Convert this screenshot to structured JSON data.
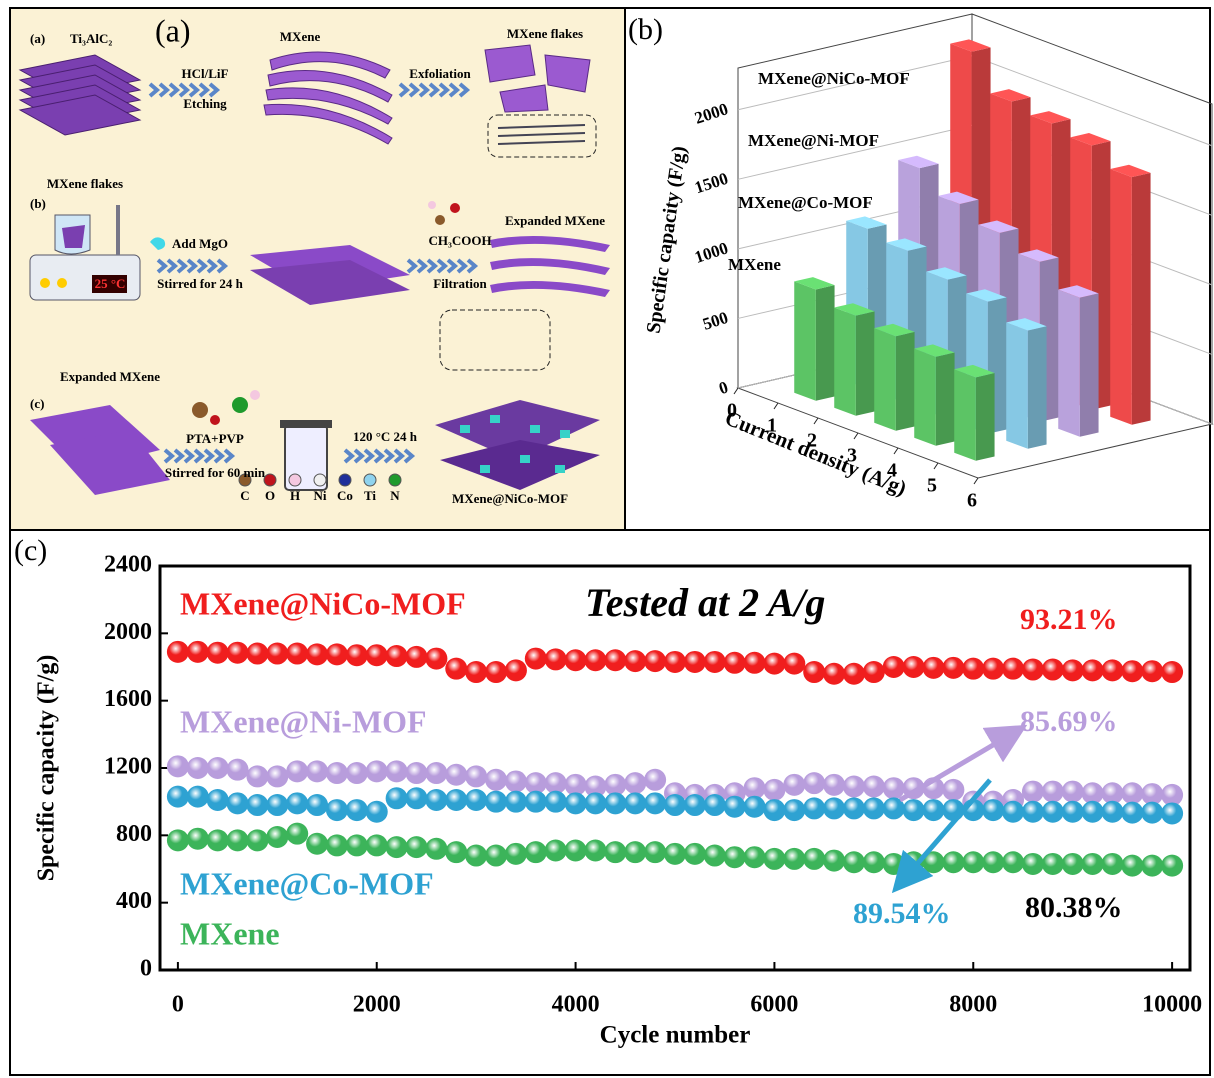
{
  "schematic": {
    "label": "(a)",
    "rows": {
      "a": {
        "label": "(a)",
        "start": "Ti₃AlC₂",
        "etch_top": "HCl/LiF",
        "etch_bottom": "Etching",
        "mid": "MXene",
        "step2": "Exfoliation",
        "end": "MXene flakes"
      },
      "b": {
        "label": "(b)",
        "start": "MXene flakes",
        "temp": "25 °C",
        "add_top": "Add MgO",
        "add_bottom": "Stirred for 24 h",
        "acid_top": "CH₃COOH",
        "acid_bottom": "Filtration",
        "end": "Expanded MXene"
      },
      "c": {
        "label": "(c)",
        "start": "Expanded MXene",
        "mix_top": "PTA+PVP",
        "mix_bottom": "Stirred for 60 min",
        "heat": "120 °C 24 h",
        "end": "MXene@NiCo-MOF"
      }
    },
    "atoms": [
      {
        "symbol": "C",
        "color": "#8a5a2b"
      },
      {
        "symbol": "O",
        "color": "#c0141c"
      },
      {
        "symbol": "H",
        "color": "#f4c8e0"
      },
      {
        "symbol": "Ni",
        "color": "#f0f0f0"
      },
      {
        "symbol": "Co",
        "color": "#1f2f9a"
      },
      {
        "symbol": "Ti",
        "color": "#8fd3ee"
      },
      {
        "symbol": "N",
        "color": "#1f9a2c"
      }
    ]
  },
  "chart_data": [
    {
      "type": "bar3d",
      "label": "(b)",
      "x_label": "Current density (A/g)",
      "z_label": "Specific capacity (F/g)",
      "x": [
        1,
        2,
        3,
        4,
        5
      ],
      "xlim": [
        0,
        6
      ],
      "xticks": [
        0,
        1,
        2,
        3,
        4,
        5,
        6
      ],
      "zlim": [
        0,
        2300
      ],
      "zticks": [
        0,
        500,
        1000,
        1500,
        2000
      ],
      "series": [
        {
          "name": "MXene@NiCo-MOF",
          "color": "#ee4a4a",
          "values": [
            2250,
            2000,
            1950,
            1900,
            1780
          ]
        },
        {
          "name": "MXene@Ni-MOF",
          "color": "#b9a2dc",
          "values": [
            1500,
            1350,
            1250,
            1150,
            1000
          ]
        },
        {
          "name": "MXene@Co-MOF",
          "color": "#86c8e4",
          "values": [
            1150,
            1100,
            1000,
            950,
            850
          ]
        },
        {
          "name": "MXene",
          "color": "#5cc465",
          "values": [
            800,
            720,
            680,
            640,
            600
          ]
        }
      ]
    },
    {
      "type": "scatter",
      "label": "(c)",
      "x_label": "Cycle number",
      "y_label": "Specific capacity (F/g)",
      "xlim": [
        -180,
        10180
      ],
      "ylim": [
        0,
        2400
      ],
      "xticks": [
        0,
        2000,
        4000,
        6000,
        8000,
        10000
      ],
      "yticks": [
        0,
        400,
        800,
        1200,
        1600,
        2000,
        2400
      ],
      "x": [
        0,
        200,
        400,
        600,
        800,
        1000,
        1200,
        1400,
        1600,
        1800,
        2000,
        2200,
        2400,
        2600,
        2800,
        3000,
        3200,
        3400,
        3600,
        3800,
        4000,
        4200,
        4400,
        4600,
        4800,
        5000,
        5200,
        5400,
        5600,
        5800,
        6000,
        6200,
        6400,
        6600,
        6800,
        7000,
        7200,
        7400,
        7600,
        7800,
        8000,
        8200,
        8400,
        8600,
        8800,
        9000,
        9200,
        9400,
        9600,
        9800,
        10000
      ],
      "series": [
        {
          "name": "MXene@NiCo-MOF",
          "color": "#f01e1e",
          "values": [
            1890,
            1890,
            1885,
            1885,
            1880,
            1880,
            1880,
            1875,
            1875,
            1870,
            1870,
            1865,
            1860,
            1850,
            1790,
            1770,
            1770,
            1780,
            1850,
            1845,
            1840,
            1840,
            1840,
            1835,
            1835,
            1830,
            1830,
            1830,
            1825,
            1825,
            1820,
            1820,
            1770,
            1760,
            1760,
            1770,
            1800,
            1800,
            1795,
            1795,
            1790,
            1790,
            1790,
            1785,
            1785,
            1780,
            1780,
            1780,
            1775,
            1775,
            1770
          ]
        },
        {
          "name": "MXene@Ni-MOF",
          "color": "#b89ddc",
          "values": [
            1210,
            1200,
            1200,
            1190,
            1150,
            1150,
            1180,
            1180,
            1170,
            1170,
            1180,
            1180,
            1170,
            1170,
            1160,
            1150,
            1130,
            1120,
            1110,
            1110,
            1100,
            1090,
            1100,
            1110,
            1130,
            1050,
            1040,
            1040,
            1050,
            1080,
            1070,
            1100,
            1110,
            1100,
            1090,
            1090,
            1080,
            1080,
            1080,
            1070,
            1000,
            1000,
            1010,
            1060,
            1060,
            1060,
            1050,
            1050,
            1050,
            1045,
            1040
          ]
        },
        {
          "name": "MXene@Co-MOF",
          "color": "#2ea2d2",
          "values": [
            1030,
            1030,
            1010,
            990,
            980,
            980,
            990,
            980,
            950,
            950,
            940,
            1020,
            1020,
            1010,
            1010,
            1010,
            1000,
            1000,
            1000,
            1000,
            990,
            990,
            990,
            990,
            990,
            980,
            980,
            980,
            970,
            970,
            950,
            950,
            960,
            960,
            960,
            960,
            960,
            950,
            950,
            950,
            950,
            950,
            940,
            940,
            940,
            940,
            940,
            940,
            935,
            935,
            930
          ]
        },
        {
          "name": "MXene",
          "color": "#3cb45a",
          "values": [
            770,
            780,
            770,
            770,
            770,
            790,
            810,
            750,
            740,
            740,
            740,
            730,
            730,
            720,
            700,
            680,
            680,
            690,
            700,
            710,
            710,
            710,
            700,
            700,
            700,
            690,
            690,
            680,
            670,
            670,
            660,
            660,
            660,
            650,
            640,
            640,
            630,
            640,
            640,
            640,
            640,
            640,
            640,
            630,
            630,
            630,
            630,
            630,
            620,
            620,
            620
          ]
        }
      ],
      "annotations": [
        {
          "text": "Tested at 2 A/g",
          "color": "#000000"
        },
        {
          "text": "93.21%",
          "color": "#f01e1e"
        },
        {
          "text": "85.69%",
          "color": "#b89ddc"
        },
        {
          "text": "89.54%",
          "color": "#2ea2d2"
        },
        {
          "text": "80.38%",
          "color": "#000000"
        }
      ]
    }
  ]
}
